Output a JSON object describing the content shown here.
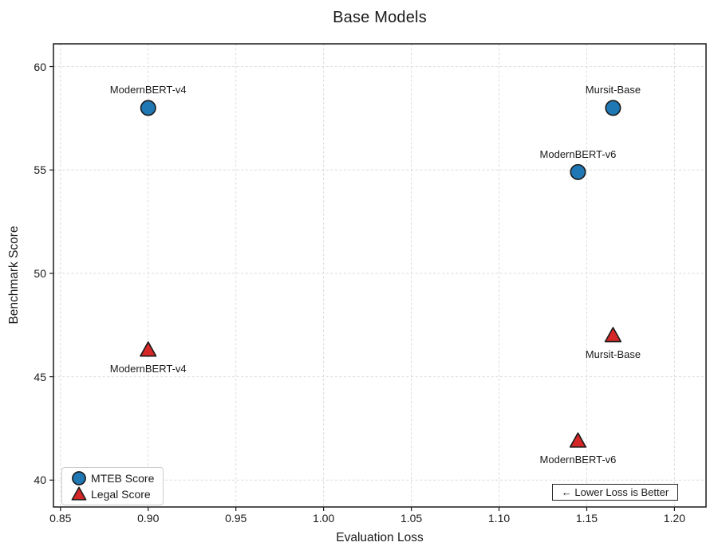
{
  "title": "Base Models",
  "annotation": {
    "text": "←  Lower Loss is Better",
    "position": "lower right"
  },
  "colors": {
    "mteb_marker": "#1f77b4",
    "legal_marker": "#d62728",
    "marker_edge": "#1a1a1a",
    "grid": "#dcdcdc",
    "axis": "#1a1a1a"
  },
  "chart_data": {
    "type": "scatter",
    "title": "Base Models",
    "xlabel": "Evaluation Loss",
    "ylabel": "Benchmark Score",
    "xlim": [
      0.846,
      1.218
    ],
    "ylim": [
      38.7,
      61.1
    ],
    "grid": true,
    "legend_position": "lower left",
    "xticks": [
      {
        "v": 0.85,
        "label": "0.85"
      },
      {
        "v": 0.9,
        "label": "0.90"
      },
      {
        "v": 0.95,
        "label": "0.95"
      },
      {
        "v": 1.0,
        "label": "1.00"
      },
      {
        "v": 1.05,
        "label": "1.05"
      },
      {
        "v": 1.1,
        "label": "1.10"
      },
      {
        "v": 1.15,
        "label": "1.15"
      },
      {
        "v": 1.2,
        "label": "1.20"
      }
    ],
    "yticks": [
      {
        "v": 40,
        "label": "40"
      },
      {
        "v": 45,
        "label": "45"
      },
      {
        "v": 50,
        "label": "50"
      },
      {
        "v": 55,
        "label": "55"
      },
      {
        "v": 60,
        "label": "60"
      }
    ],
    "series": [
      {
        "name": "MTEB Score",
        "marker": "circle",
        "color": "#1f77b4",
        "points": [
          {
            "label": "ModernBERT-v4",
            "x": 0.9,
            "y": 58.0,
            "label_pos": "above"
          },
          {
            "label": "ModernBERT-v6",
            "x": 1.145,
            "y": 54.9,
            "label_pos": "above"
          },
          {
            "label": "Mursit-Base",
            "x": 1.165,
            "y": 58.0,
            "label_pos": "above"
          }
        ]
      },
      {
        "name": "Legal Score",
        "marker": "triangle",
        "color": "#d62728",
        "points": [
          {
            "label": "ModernBERT-v4",
            "x": 0.9,
            "y": 46.3,
            "label_pos": "below"
          },
          {
            "label": "ModernBERT-v6",
            "x": 1.145,
            "y": 41.9,
            "label_pos": "below"
          },
          {
            "label": "Mursit-Base",
            "x": 1.165,
            "y": 47.0,
            "label_pos": "below"
          }
        ]
      }
    ],
    "annotation": {
      "text": "←  Lower Loss is Better",
      "position": "lower right"
    }
  }
}
